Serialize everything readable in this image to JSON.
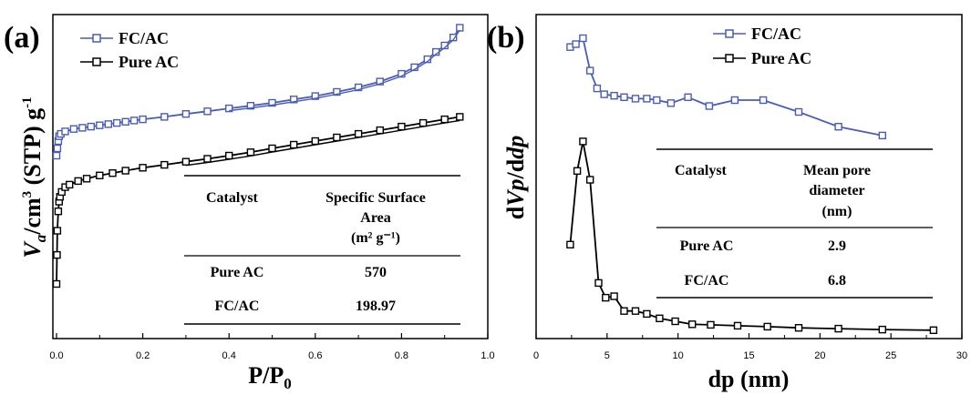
{
  "colors": {
    "blue": "#4a5cb8",
    "black": "#000000"
  },
  "chart_data": [
    {
      "panel": "(a)",
      "type": "line",
      "xlabel": "P/P",
      "xlabel_sub": "0",
      "ylabel_parts": {
        "v": "V",
        "a": "a",
        "cm": "/cm",
        "exp3": "3",
        "stp": " (STP) g",
        "exp": "-1"
      },
      "xlim": [
        0,
        1.0
      ],
      "xticks": [
        "0.0",
        "0.2",
        "0.4",
        "0.6",
        "0.8",
        "1.0"
      ],
      "y_ticks_labeled": false,
      "legend": {
        "position": "top-left"
      },
      "series": [
        {
          "name": "FC/AC",
          "color": "#4a5cb8",
          "marker": "square",
          "x": [
            0.0,
            0.002,
            0.004,
            0.006,
            0.01,
            0.02,
            0.04,
            0.06,
            0.08,
            0.1,
            0.12,
            0.14,
            0.16,
            0.18,
            0.2,
            0.25,
            0.3,
            0.35,
            0.4,
            0.45,
            0.5,
            0.55,
            0.6,
            0.65,
            0.7,
            0.75,
            0.8,
            0.83,
            0.86,
            0.88,
            0.9,
            0.92,
            0.935
          ],
          "y": [
            53,
            56,
            59,
            61,
            62,
            63,
            64,
            64.5,
            65,
            65.5,
            66,
            66.5,
            67,
            67.5,
            68,
            69,
            70.2,
            71.3,
            72.5,
            73.6,
            74.8,
            76.2,
            77.6,
            79.3,
            81.2,
            83.6,
            86.8,
            89.5,
            92.8,
            95.8,
            98.5,
            101.8,
            105.8
          ]
        },
        {
          "name": "Pure AC",
          "color": "#000000",
          "marker": "square",
          "x": [
            0.0,
            0.001,
            0.002,
            0.004,
            0.006,
            0.008,
            0.012,
            0.02,
            0.03,
            0.05,
            0.07,
            0.1,
            0.13,
            0.16,
            0.2,
            0.25,
            0.3,
            0.35,
            0.4,
            0.45,
            0.5,
            0.55,
            0.6,
            0.65,
            0.7,
            0.75,
            0.8,
            0.85,
            0.9,
            0.935
          ],
          "y": [
            0,
            12,
            22,
            30,
            34,
            36,
            38,
            40,
            41,
            42.5,
            43.5,
            44.8,
            45.8,
            46.8,
            48,
            49.2,
            50.5,
            51.7,
            53,
            54.4,
            56,
            57.5,
            59,
            60.5,
            62,
            63.5,
            65,
            66.5,
            68,
            69
          ]
        }
      ],
      "table": {
        "headers": [
          "Catalyst",
          "Specific Surface",
          "Area",
          "(m² g⁻¹)"
        ],
        "rows": [
          {
            "catalyst": "Pure AC",
            "value": "570"
          },
          {
            "catalyst": "FC/AC",
            "value": "198.97"
          }
        ]
      }
    },
    {
      "panel": "(b)",
      "type": "line",
      "xlabel": "dp (nm)",
      "ylabel_parts": {
        "d1": "d",
        "v": "V",
        "p": "p",
        "sep": "/d",
        "dp": "dp"
      },
      "xlim": [
        0,
        30
      ],
      "xticks": [
        "0",
        "5",
        "10",
        "15",
        "20",
        "25",
        "30"
      ],
      "y_ticks_labeled": false,
      "legend": {
        "position": "top-center"
      },
      "series": [
        {
          "name": "FC/AC",
          "color": "#4a5cb8",
          "marker": "square",
          "x": [
            2.4,
            2.8,
            3.3,
            3.8,
            4.3,
            4.8,
            5.5,
            6.2,
            7.0,
            7.8,
            8.5,
            9.5,
            10.7,
            12.2,
            14.0,
            16.0,
            18.5,
            21.3,
            24.4
          ],
          "y": [
            97,
            98,
            100,
            89,
            83,
            81,
            80.5,
            80,
            79.5,
            79.5,
            79,
            78,
            80,
            77,
            79,
            79,
            75,
            70,
            67
          ]
        },
        {
          "name": "Pure AC",
          "color": "#000000",
          "marker": "square",
          "x": [
            2.4,
            2.9,
            3.3,
            3.8,
            4.4,
            4.9,
            5.5,
            6.2,
            7.0,
            7.8,
            8.7,
            9.8,
            11.0,
            12.3,
            14.2,
            16.3,
            18.5,
            21.3,
            24.4,
            28.0
          ],
          "y": [
            30,
            55,
            65,
            52,
            17,
            12,
            12.5,
            7.5,
            7.5,
            6.5,
            5,
            4,
            3,
            2.8,
            2.5,
            2.2,
            1.8,
            1.5,
            1.2,
            1
          ]
        }
      ],
      "table": {
        "headers": [
          "Catalyst",
          "Mean pore",
          "diameter",
          "(nm)"
        ],
        "rows": [
          {
            "catalyst": "Pure AC",
            "value": "2.9"
          },
          {
            "catalyst": "FC/AC",
            "value": "6.8"
          }
        ]
      }
    }
  ]
}
